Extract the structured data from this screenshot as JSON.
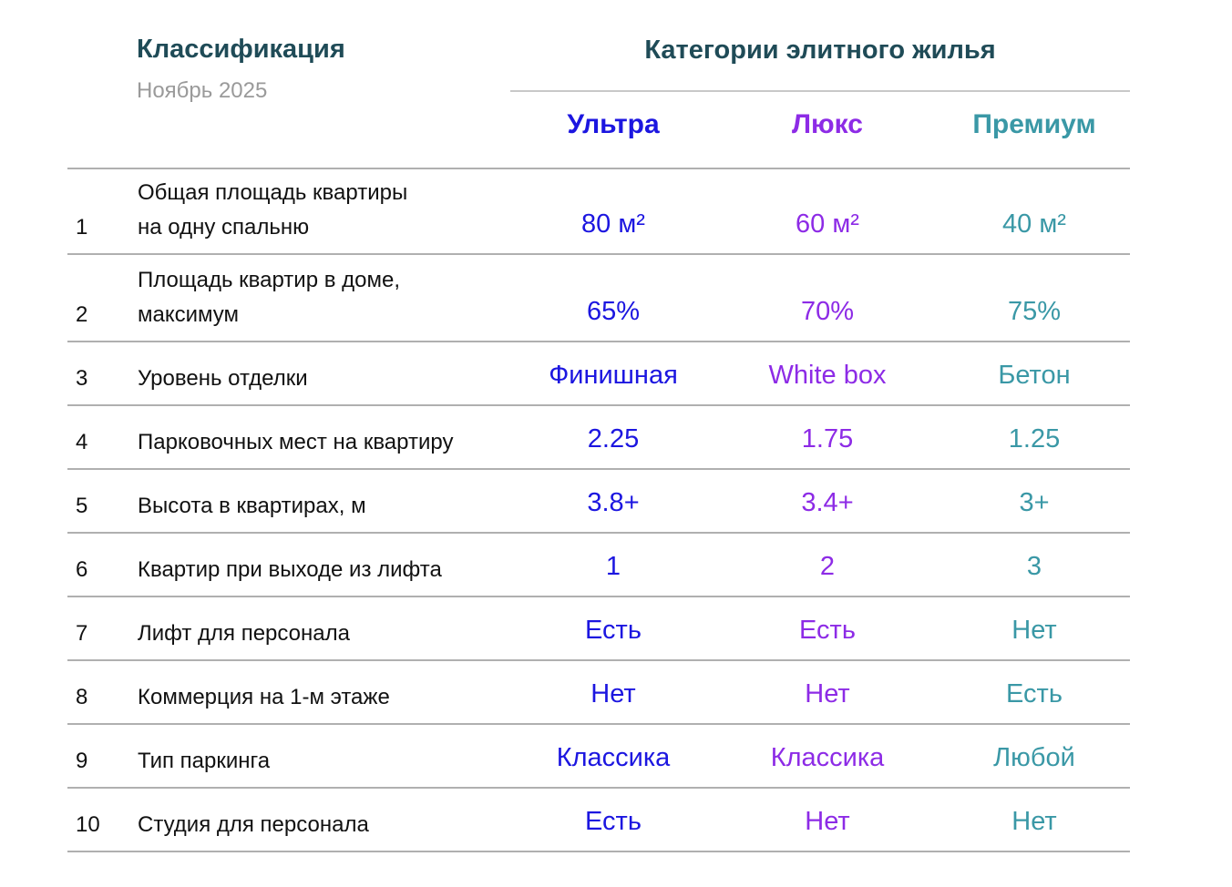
{
  "header": {
    "title": "Классификация",
    "subtitle": "Ноябрь 2025",
    "group_title": "Категории элитного жилья"
  },
  "columns": [
    {
      "name": "Ультра",
      "color": "#1c16e0"
    },
    {
      "name": "Люкс",
      "color": "#8d2be6"
    },
    {
      "name": "Премиум",
      "color": "#3a98a6"
    }
  ],
  "rows": [
    {
      "number": "1",
      "label": "Общая площадь квартиры\nна одну спальню",
      "values": [
        "80 м²",
        "60 м²",
        "40 м²"
      ]
    },
    {
      "number": "2",
      "label": "Площадь квартир в доме,\nмаксимум",
      "values": [
        "65%",
        "70%",
        "75%"
      ]
    },
    {
      "number": "3",
      "label": "Уровень отделки",
      "values": [
        "Финишная",
        "White box",
        "Бетон"
      ]
    },
    {
      "number": "4",
      "label": "Парковочных мест на квартиру",
      "values": [
        "2.25",
        "1.75",
        "1.25"
      ]
    },
    {
      "number": "5",
      "label": "Высота в квартирах, м",
      "values": [
        "3.8+",
        "3.4+",
        "3+"
      ]
    },
    {
      "number": "6",
      "label": "Квартир при выходе из лифта",
      "values": [
        "1",
        "2",
        "3"
      ]
    },
    {
      "number": "7",
      "label": "Лифт для персонала",
      "values": [
        "Есть",
        "Есть",
        "Нет"
      ]
    },
    {
      "number": "8",
      "label": "Коммерция на 1-м этаже",
      "values": [
        "Нет",
        "Нет",
        "Есть"
      ]
    },
    {
      "number": "9",
      "label": "Тип паркинга",
      "values": [
        "Классика",
        "Классика",
        "Любой"
      ]
    },
    {
      "number": "10",
      "label": "Студия для персонала",
      "values": [
        "Есть",
        "Нет",
        "Нет"
      ]
    }
  ]
}
